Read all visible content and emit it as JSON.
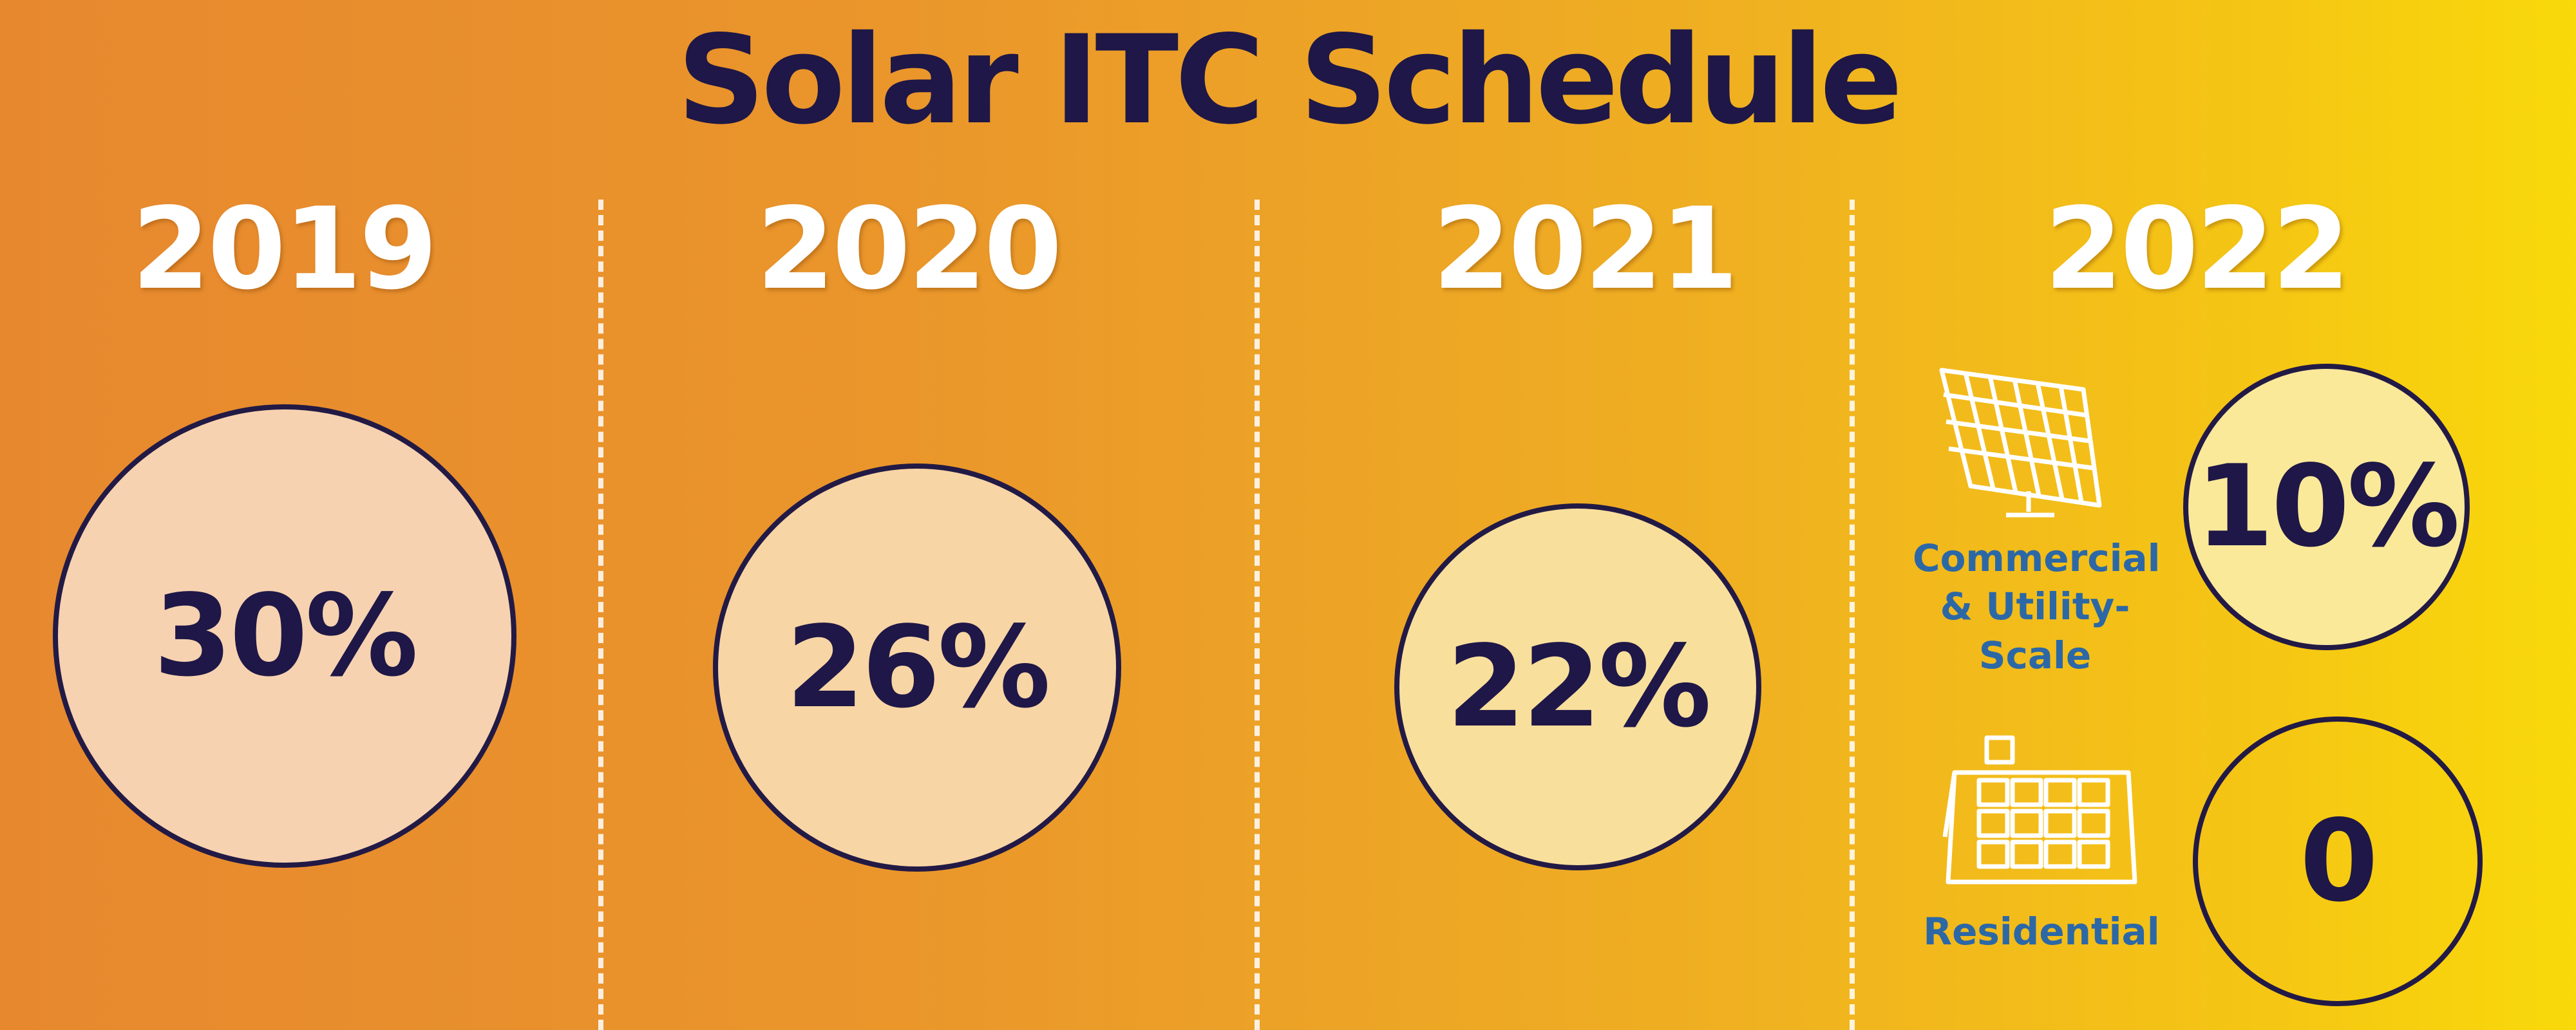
{
  "title": "Solar ITC Schedule",
  "chart_data": {
    "type": "bubble",
    "title": "Solar ITC Schedule",
    "years": [
      "2019",
      "2020",
      "2021",
      "2022"
    ],
    "values": [
      {
        "year": "2019",
        "label": "30%",
        "value": 30,
        "fill": "#f7d2b0"
      },
      {
        "year": "2020",
        "label": "26%",
        "value": 26,
        "fill": "#f8d5a5"
      },
      {
        "year": "2021",
        "label": "22%",
        "value": 22,
        "fill": "#f9df9c"
      },
      {
        "year": "2022",
        "category": "Commercial & Utility-Scale",
        "label": "10%",
        "value": 10,
        "fill": "#fbe99a"
      },
      {
        "year": "2022",
        "category": "Residential",
        "label": "0",
        "value": 0,
        "fill": "none"
      }
    ],
    "categories_2022": [
      "Commercial & Utility-Scale",
      "Residential"
    ],
    "category_labels": {
      "commercial": [
        "Commercial",
        "& Utility-",
        "Scale"
      ],
      "residential": "Residential"
    }
  },
  "colors": {
    "text_dark": "#1e1747",
    "label_blue": "#2c68a6",
    "year_white": "#ffffff"
  },
  "icons": [
    "commercial-solar-panel-icon",
    "residential-rooftop-solar-icon"
  ]
}
